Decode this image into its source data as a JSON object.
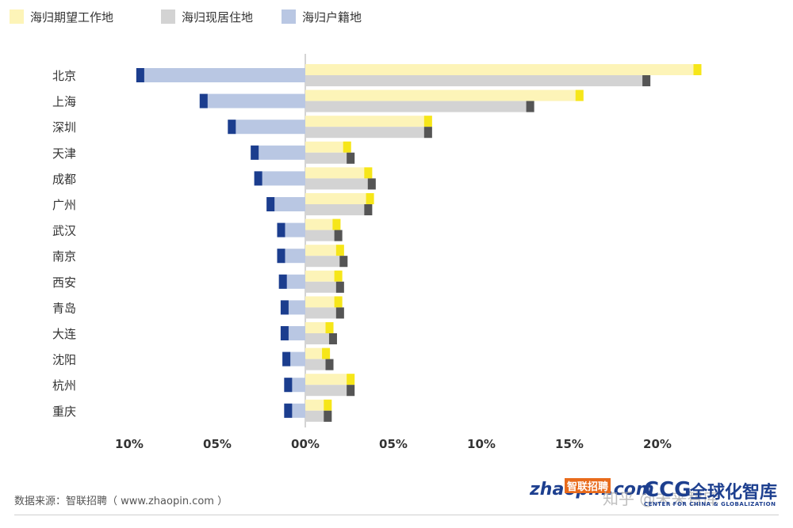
{
  "chart_data": {
    "type": "bar",
    "orientation": "horizontal-diverging",
    "categories": [
      "北京",
      "上海",
      "深圳",
      "天津",
      "成都",
      "广州",
      "武汉",
      "南京",
      "西安",
      "青岛",
      "大连",
      "沈阳",
      "杭州",
      "重庆"
    ],
    "series": [
      {
        "name": "海归期望工作地",
        "side": "right",
        "values": [
          22.5,
          15.8,
          7.2,
          2.6,
          3.8,
          3.9,
          2.0,
          2.2,
          2.1,
          2.1,
          1.6,
          1.4,
          2.8,
          1.5
        ]
      },
      {
        "name": "海归现居住地",
        "side": "right",
        "values": [
          19.6,
          13.0,
          7.2,
          2.8,
          4.0,
          3.8,
          2.1,
          2.4,
          2.2,
          2.2,
          1.8,
          1.6,
          2.8,
          1.5
        ]
      },
      {
        "name": "海归户籍地",
        "side": "left",
        "values": [
          9.6,
          6.0,
          4.4,
          3.1,
          2.9,
          2.2,
          1.6,
          1.6,
          1.5,
          1.4,
          1.4,
          1.3,
          1.2,
          1.2
        ]
      }
    ],
    "xlim": [
      -10,
      22.5
    ],
    "xticks": [
      {
        "value": -10,
        "label": "10%"
      },
      {
        "value": -5,
        "label": "05%"
      },
      {
        "value": 0,
        "label": "00%"
      },
      {
        "value": 5,
        "label": "05%"
      },
      {
        "value": 10,
        "label": "10%"
      },
      {
        "value": 15,
        "label": "15%"
      },
      {
        "value": 20,
        "label": "20%"
      }
    ],
    "legend_position": "top-left",
    "grid": false,
    "colors": {
      "expected": "#fdf4b8",
      "expected_tip": "#f6e619",
      "current": "#d3d3d3",
      "current_tip": "#555555",
      "hukou": "#b9c7e3",
      "hukou_tip": "#1b3d8e",
      "axis": "#aaaaaa",
      "text": "#333333"
    }
  },
  "footer": {
    "source": "数据来源：智联招聘（ www.zhaopin.com ）",
    "logo_zhaopin": "zhaopin.com",
    "logo_zhaopin_cn": "智联招聘",
    "logo_ccg": "CCG",
    "logo_ccg_cn": "全球化智库",
    "logo_ccg_en": "CENTER FOR CHINA & GLOBALIZATION",
    "watermark": "知乎 @未来智库"
  }
}
